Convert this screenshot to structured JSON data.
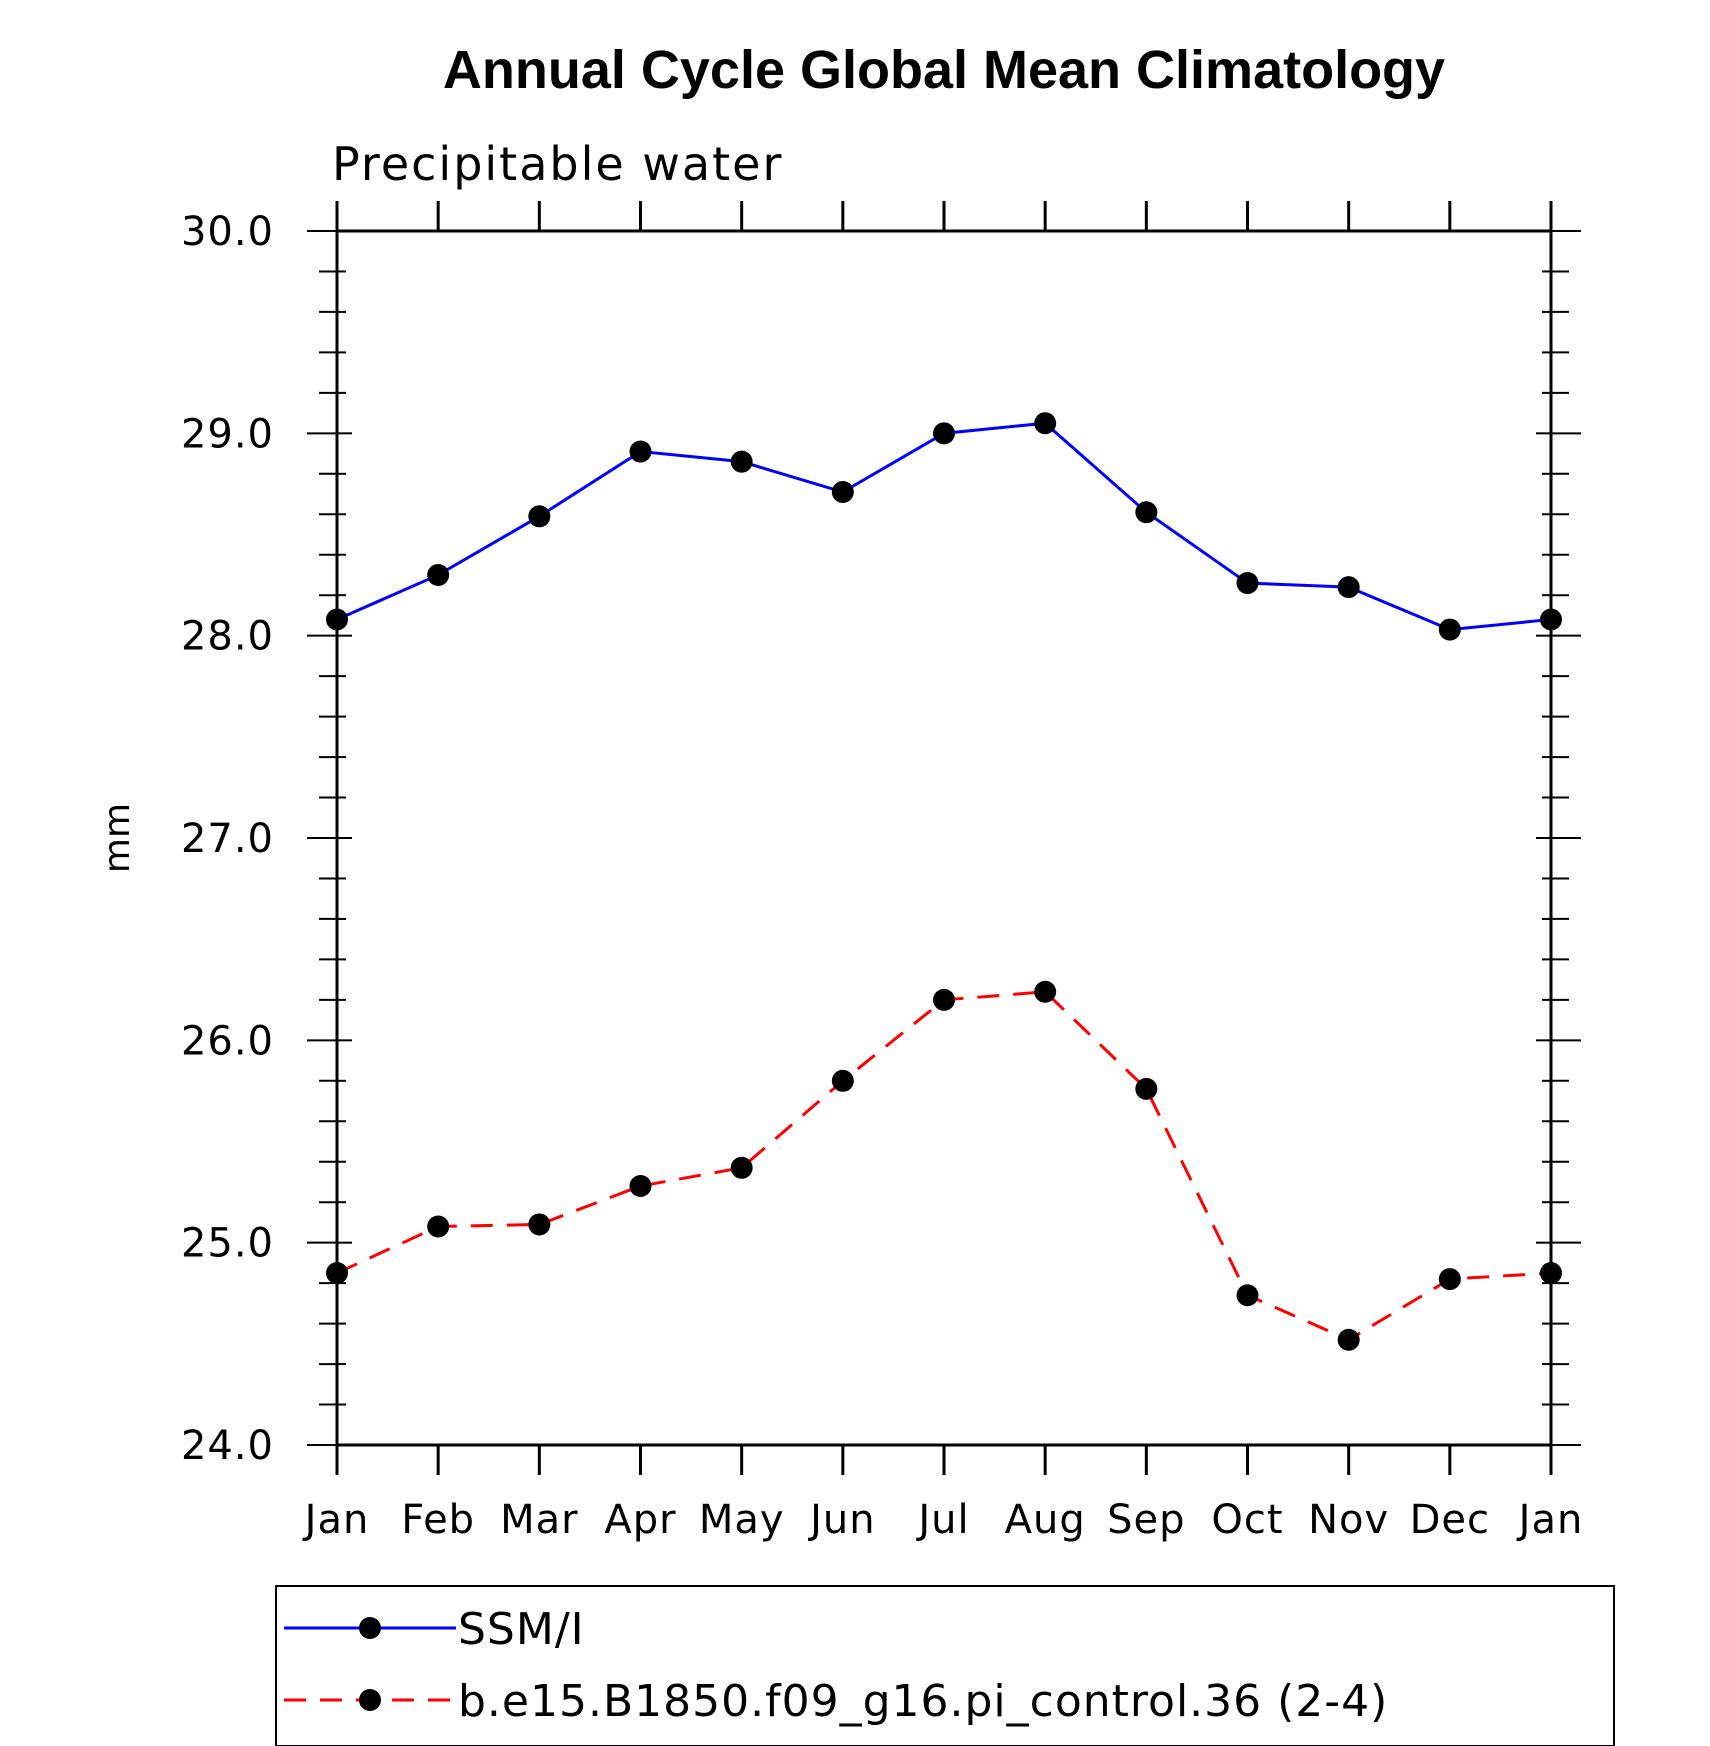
{
  "chart_data": {
    "type": "line",
    "title": "Annual Cycle Global Mean Climatology",
    "subtitle": "Precipitable water",
    "xlabel": "",
    "ylabel": "mm",
    "categories": [
      "Jan",
      "Feb",
      "Mar",
      "Apr",
      "May",
      "Jun",
      "Jul",
      "Aug",
      "Sep",
      "Oct",
      "Nov",
      "Dec",
      "Jan"
    ],
    "ylim": [
      24.0,
      30.0
    ],
    "yticks": [
      "24.0",
      "25.0",
      "26.0",
      "27.0",
      "28.0",
      "29.0",
      "30.0"
    ],
    "grid": false,
    "legend_position": "bottom",
    "series": [
      {
        "name": "SSM/I",
        "color": "#0000ff",
        "line_style": "solid",
        "marker": "filled-circle",
        "values": [
          28.08,
          28.3,
          28.59,
          28.91,
          28.86,
          28.71,
          29.0,
          29.05,
          28.61,
          28.26,
          28.24,
          28.03,
          28.08
        ]
      },
      {
        "name": "b.e15.B1850.f09_g16.pi_control.36 (2-4)",
        "color": "#ff0000",
        "line_style": "dashed",
        "marker": "filled-circle",
        "values": [
          24.85,
          25.08,
          25.09,
          25.28,
          25.37,
          25.8,
          26.2,
          26.24,
          25.76,
          24.74,
          24.52,
          24.82,
          24.85
        ]
      }
    ]
  }
}
